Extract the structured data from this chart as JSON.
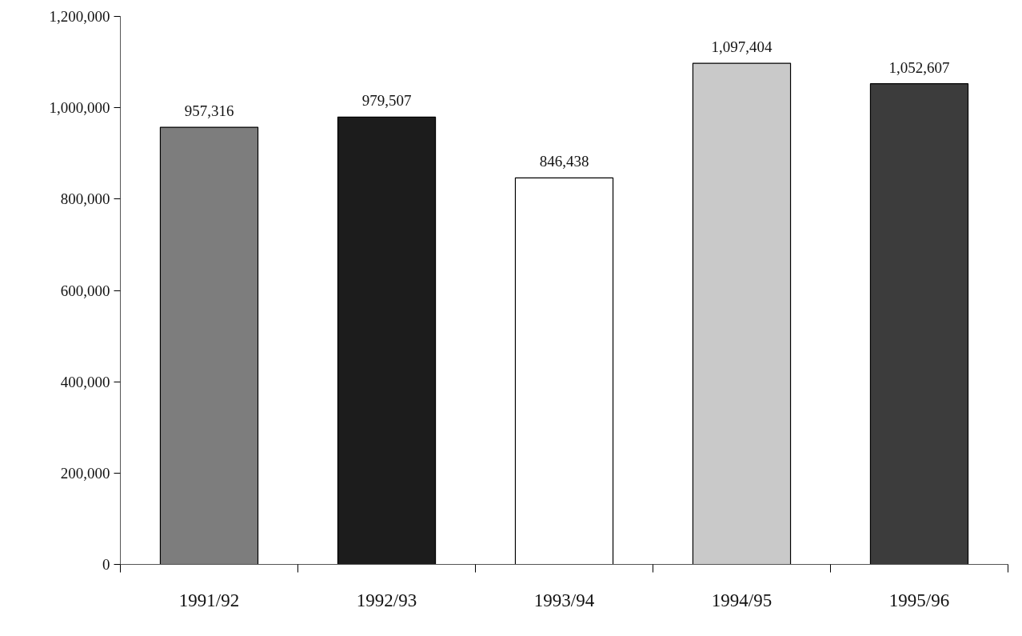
{
  "chart_data": {
    "type": "bar",
    "categories": [
      "1991/92",
      "1992/93",
      "1993/94",
      "1994/95",
      "1995/96"
    ],
    "values": [
      957316,
      979507,
      846438,
      1097404,
      1052607
    ],
    "colors": [
      "#7d7d7d",
      "#1c1c1c",
      "#ffffff",
      "#c9c9c9",
      "#3c3c3c"
    ],
    "ylim": [
      0,
      1200000
    ],
    "yticks": [
      0,
      {
        "value": 200000,
        "label": "200,000"
      },
      {
        "value": 400000,
        "label": "400,000"
      },
      {
        "value": 600000,
        "label": "600,000"
      },
      {
        "value": 800000,
        "label": "800,000"
      },
      {
        "value": 1000000,
        "label": "1,000,000"
      },
      {
        "value": 1200000,
        "label": "1,200,000"
      }
    ],
    "value_labels": [
      "957,316",
      "979,507",
      "846,438",
      "1,097,404",
      "1,052,607"
    ],
    "grid": false
  }
}
